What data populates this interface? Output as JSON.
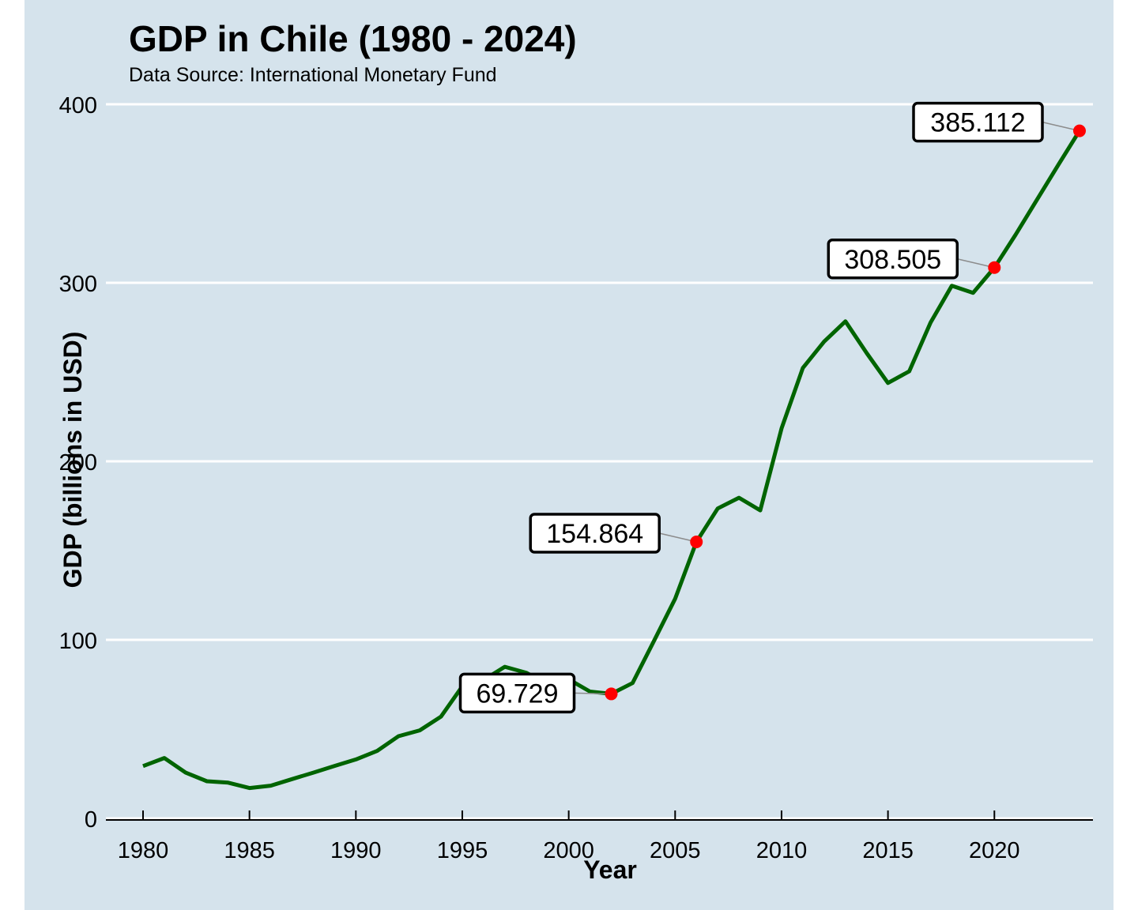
{
  "colors": {
    "background": "#d5e3ec",
    "gridline": "#ffffff",
    "line": "#006400",
    "highlight": "#ff0000",
    "label_border": "#000000",
    "label_fill": "#ffffff",
    "connector": "#8c8c8c"
  },
  "chart_data": {
    "type": "line",
    "title": "GDP in Chile (1980 - 2024)",
    "subtitle": "Data Source: International Monetary Fund",
    "xlabel": "Year",
    "ylabel": "GDP (billions in USD)",
    "xlim": [
      1980,
      2024
    ],
    "ylim": [
      0,
      400
    ],
    "x_ticks": [
      1980,
      1985,
      1990,
      1995,
      2000,
      2005,
      2010,
      2015,
      2020
    ],
    "y_ticks": [
      0,
      100,
      200,
      300,
      400
    ],
    "grid": "horizontal major",
    "series": [
      {
        "x": [
          1980,
          1981,
          1982,
          1983,
          1984,
          1985,
          1986,
          1987,
          1988,
          1989,
          1990,
          1991,
          1992,
          1993,
          1994,
          1995,
          1996,
          1997,
          1998,
          1999,
          2000,
          2001,
          2002,
          2003,
          2004,
          2005,
          2006,
          2007,
          2008,
          2009,
          2010,
          2011,
          2012,
          2013,
          2014,
          2015,
          2016,
          2017,
          2018,
          2019,
          2020,
          2021,
          2022,
          2023,
          2024
        ],
        "y": [
          29.3,
          33.8,
          25.6,
          20.8,
          20.0,
          17.0,
          18.3,
          22.0,
          25.6,
          29.4,
          33.0,
          37.8,
          46.0,
          49.3,
          57.0,
          74.0,
          77.5,
          84.9,
          81.6,
          75.0,
          77.9,
          71.0,
          69.729,
          75.8,
          99.3,
          123.0,
          154.864,
          173.6,
          179.6,
          172.5,
          218.5,
          252.3,
          267.1,
          278.4,
          260.6,
          243.9,
          250.4,
          277.7,
          298.3,
          294.4,
          308.505,
          327.0,
          346.5,
          366.0,
          385.112
        ]
      }
    ],
    "highlights": [
      {
        "x": 2002,
        "y": 69.729,
        "label": "69.729"
      },
      {
        "x": 2006,
        "y": 154.864,
        "label": "154.864"
      },
      {
        "x": 2020,
        "y": 308.505,
        "label": "308.505"
      },
      {
        "x": 2024,
        "y": 385.112,
        "label": "385.112"
      }
    ]
  }
}
